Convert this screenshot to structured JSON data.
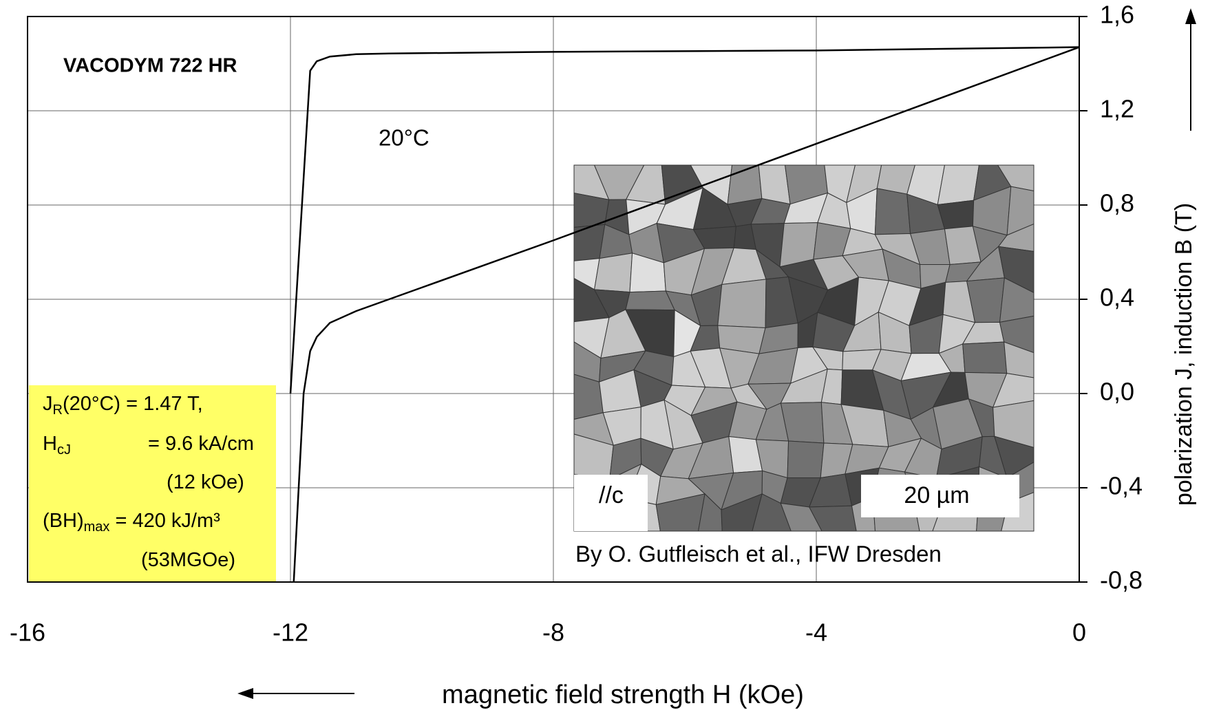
{
  "chart_data": {
    "type": "line",
    "title": "VACODYM 722 HR",
    "x_label": "magnetic field strength H (kOe)",
    "y_label": "polarization  J, induction B (T)",
    "xlim": [
      -16,
      0
    ],
    "ylim": [
      -0.8,
      1.6
    ],
    "xticks": [
      -16,
      -12,
      -8,
      -4,
      0
    ],
    "yticks": [
      {
        "value": 1.6,
        "label": "1,6"
      },
      {
        "value": 1.2,
        "label": "1,2"
      },
      {
        "value": 0.8,
        "label": "0,8"
      },
      {
        "value": 0.4,
        "label": "0,4"
      },
      {
        "value": 0,
        "label": "0,0"
      },
      {
        "value": -0.4,
        "label": "-0,4"
      },
      {
        "value": -0.8,
        "label": "-0,8"
      }
    ],
    "grid": true,
    "series": [
      {
        "color": "#000000",
        "x": [
          0,
          -4,
          -8,
          -10.5,
          -11,
          -11.4,
          -11.6,
          -11.7,
          -12
        ],
        "values": [
          1.47,
          1.456,
          1.45,
          1.443,
          1.44,
          1.43,
          1.41,
          1.37,
          0
        ]
      },
      {
        "color": "#000000",
        "x": [
          0,
          -4,
          -8,
          -10,
          -10.5,
          -11,
          -11.4,
          -11.6,
          -11.7,
          -11.8,
          -11.95
        ],
        "values": [
          1.47,
          1.06,
          0.65,
          0.45,
          0.4,
          0.35,
          0.3,
          0.24,
          0.18,
          0,
          -0.8
        ]
      }
    ],
    "annotations": {
      "temperature": "20°C",
      "info_box": [
        [
          "J",
          "R",
          "(20°C) = 1.47 T,"
        ],
        [
          "H",
          "cJ",
          "= 9.6 kA/cm"
        ],
        [
          "(12 kOe)"
        ],
        [
          "(BH)",
          "max",
          " = 420 kJ/m³"
        ],
        [
          "(53MGOe)"
        ]
      ],
      "inset_labels": [
        "//c",
        "20 µm"
      ],
      "credit": "By O. Gutfleisch et al., IFW Dresden"
    }
  }
}
